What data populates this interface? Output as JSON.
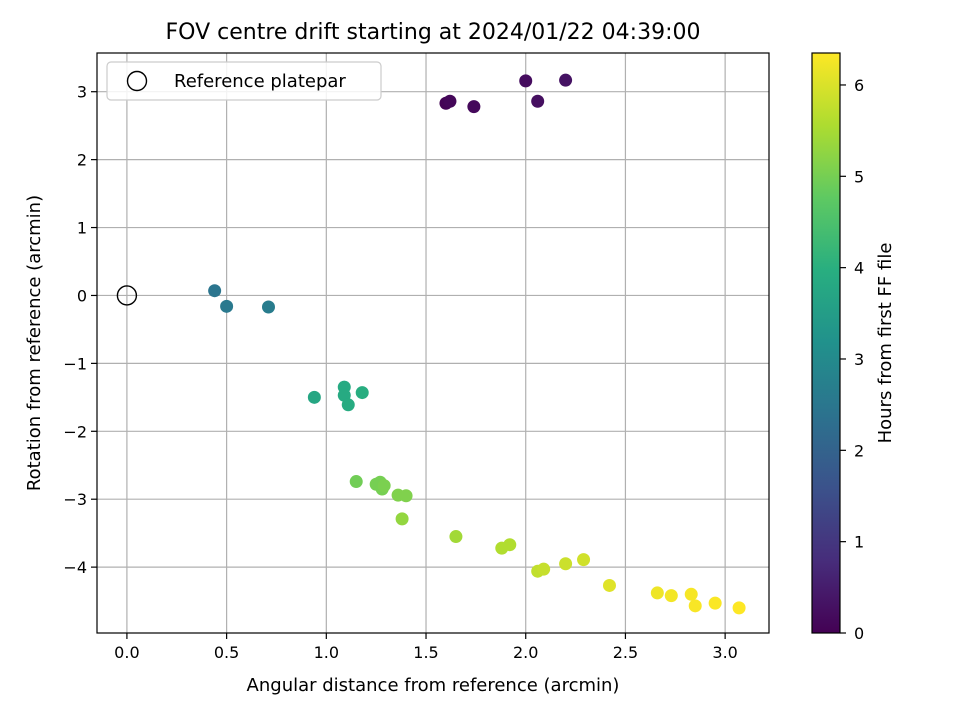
{
  "chart_data": {
    "type": "scatter",
    "title": "FOV centre drift starting at 2024/01/22 04:39:00",
    "xlabel": "Angular distance from reference (arcmin)",
    "ylabel": "Rotation from reference (arcmin)",
    "colorbar_label": "Hours from first FF file",
    "xlim": [
      -0.15,
      3.22
    ],
    "ylim": [
      -4.97,
      3.57
    ],
    "clim": [
      0,
      6.35
    ],
    "grid": true,
    "legend_position": "upper-left",
    "colormap": "viridis",
    "x_ticks": [
      0.0,
      0.5,
      1.0,
      1.5,
      2.0,
      2.5,
      3.0
    ],
    "x_tick_labels": [
      "0.0",
      "0.5",
      "1.0",
      "1.5",
      "2.0",
      "2.5",
      "3.0"
    ],
    "y_ticks": [
      3,
      2,
      1,
      0,
      -1,
      -2,
      -3,
      -4
    ],
    "y_tick_labels": [
      "3",
      "2",
      "1",
      "0",
      "−1",
      "−2",
      "−3",
      "−4"
    ],
    "colorbar_ticks": [
      0,
      1,
      2,
      3,
      4,
      5,
      6
    ],
    "colorbar_tick_labels": [
      "0",
      "1",
      "2",
      "3",
      "4",
      "5",
      "6"
    ],
    "reference": {
      "label": "Reference platepar",
      "x": 0.0,
      "y": 0.0
    },
    "points": [
      {
        "x": 1.6,
        "y": 2.83,
        "hours": 0.05
      },
      {
        "x": 1.62,
        "y": 2.86,
        "hours": 0.1
      },
      {
        "x": 1.74,
        "y": 2.78,
        "hours": 0.15
      },
      {
        "x": 2.0,
        "y": 3.16,
        "hours": 0.2
      },
      {
        "x": 2.06,
        "y": 2.86,
        "hours": 0.25
      },
      {
        "x": 2.2,
        "y": 3.17,
        "hours": 0.3
      },
      {
        "x": 0.44,
        "y": 0.07,
        "hours": 2.45
      },
      {
        "x": 0.5,
        "y": -0.16,
        "hours": 2.55
      },
      {
        "x": 0.71,
        "y": -0.17,
        "hours": 2.65
      },
      {
        "x": 0.94,
        "y": -1.5,
        "hours": 3.75
      },
      {
        "x": 1.09,
        "y": -1.35,
        "hours": 3.85
      },
      {
        "x": 1.09,
        "y": -1.47,
        "hours": 3.85
      },
      {
        "x": 1.11,
        "y": -1.61,
        "hours": 3.9
      },
      {
        "x": 1.18,
        "y": -1.43,
        "hours": 3.95
      },
      {
        "x": 1.15,
        "y": -2.74,
        "hours": 4.95
      },
      {
        "x": 1.25,
        "y": -2.78,
        "hours": 5.0
      },
      {
        "x": 1.27,
        "y": -2.75,
        "hours": 5.0
      },
      {
        "x": 1.28,
        "y": -2.85,
        "hours": 5.0
      },
      {
        "x": 1.29,
        "y": -2.8,
        "hours": 5.05
      },
      {
        "x": 1.36,
        "y": -2.94,
        "hours": 5.1
      },
      {
        "x": 1.4,
        "y": -2.95,
        "hours": 5.1
      },
      {
        "x": 1.38,
        "y": -3.29,
        "hours": 5.3
      },
      {
        "x": 1.65,
        "y": -3.55,
        "hours": 5.45
      },
      {
        "x": 1.88,
        "y": -3.72,
        "hours": 5.6
      },
      {
        "x": 1.92,
        "y": -3.67,
        "hours": 5.6
      },
      {
        "x": 2.06,
        "y": -4.06,
        "hours": 5.75
      },
      {
        "x": 2.09,
        "y": -4.03,
        "hours": 5.8
      },
      {
        "x": 2.2,
        "y": -3.95,
        "hours": 5.85
      },
      {
        "x": 2.29,
        "y": -3.89,
        "hours": 5.9
      },
      {
        "x": 2.42,
        "y": -4.27,
        "hours": 6.05
      },
      {
        "x": 2.66,
        "y": -4.38,
        "hours": 6.2
      },
      {
        "x": 2.73,
        "y": -4.42,
        "hours": 6.25
      },
      {
        "x": 2.83,
        "y": -4.4,
        "hours": 6.28
      },
      {
        "x": 2.85,
        "y": -4.57,
        "hours": 6.3
      },
      {
        "x": 2.95,
        "y": -4.53,
        "hours": 6.32
      },
      {
        "x": 3.07,
        "y": -4.6,
        "hours": 6.35
      }
    ]
  }
}
